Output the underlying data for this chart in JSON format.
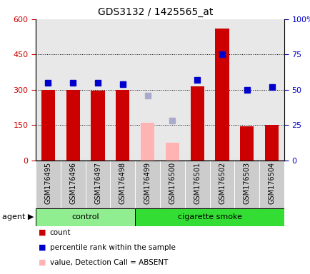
{
  "title": "GDS3132 / 1425565_at",
  "samples": [
    "GSM176495",
    "GSM176496",
    "GSM176497",
    "GSM176498",
    "GSM176499",
    "GSM176500",
    "GSM176501",
    "GSM176502",
    "GSM176503",
    "GSM176504"
  ],
  "counts": [
    298,
    300,
    295,
    300,
    null,
    null,
    315,
    560,
    145,
    152
  ],
  "counts_absent": [
    null,
    null,
    null,
    null,
    160,
    75,
    null,
    null,
    null,
    null
  ],
  "percentile_ranks": [
    55,
    55,
    55,
    54,
    null,
    null,
    57,
    75,
    50,
    52
  ],
  "ranks_absent": [
    null,
    null,
    null,
    null,
    46,
    28,
    null,
    null,
    null,
    null
  ],
  "detection_call": [
    "P",
    "P",
    "P",
    "P",
    "A",
    "A",
    "P",
    "P",
    "P",
    "P"
  ],
  "agent_groups": [
    {
      "label": "control",
      "start": 0,
      "end": 4
    },
    {
      "label": "cigarette smoke",
      "start": 4,
      "end": 10
    }
  ],
  "ylim_left": [
    0,
    600
  ],
  "ylim_right": [
    0,
    100
  ],
  "yticks_left": [
    0,
    150,
    300,
    450,
    600
  ],
  "yticks_right": [
    0,
    25,
    50,
    75,
    100
  ],
  "ytick_labels_left": [
    "0",
    "150",
    "300",
    "450",
    "600"
  ],
  "ytick_labels_right": [
    "0",
    "25",
    "50",
    "75",
    "100%"
  ],
  "bar_color_present": "#cc0000",
  "bar_color_absent": "#ffb3b3",
  "marker_color_present": "#0000cc",
  "marker_color_absent": "#aaaacc",
  "bg_plot": "#e8e8e8",
  "bg_xtick": "#cccccc",
  "bg_agent_control": "#90ee90",
  "bg_agent_smoke": "#33dd33",
  "bar_width": 0.55,
  "marker_size": 6,
  "xlim": [
    -0.5,
    9.5
  ]
}
